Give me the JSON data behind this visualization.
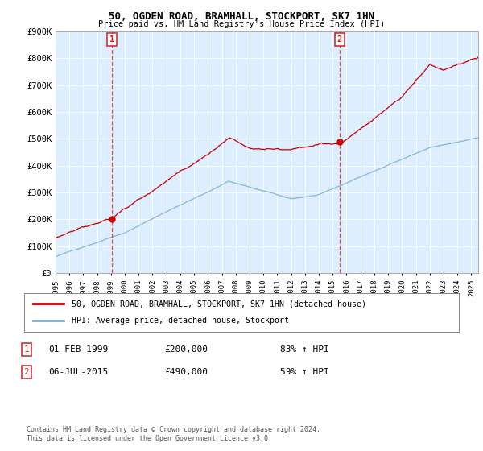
{
  "title": "50, OGDEN ROAD, BRAMHALL, STOCKPORT, SK7 1HN",
  "subtitle": "Price paid vs. HM Land Registry's House Price Index (HPI)",
  "sale1_date": "01-FEB-1999",
  "sale1_price": 200000,
  "sale1_label": "83% ↑ HPI",
  "sale2_date": "06-JUL-2015",
  "sale2_price": 490000,
  "sale2_label": "59% ↑ HPI",
  "legend_line1": "50, OGDEN ROAD, BRAMHALL, STOCKPORT, SK7 1HN (detached house)",
  "legend_line2": "HPI: Average price, detached house, Stockport",
  "footer": "Contains HM Land Registry data © Crown copyright and database right 2024.\nThis data is licensed under the Open Government Licence v3.0.",
  "red_color": "#cc0000",
  "blue_color": "#7ab0d4",
  "bg_fill_color": "#ddeeff",
  "vline_color": "#cc3333",
  "marker_box_color": "#cc2222",
  "ylim": [
    0,
    900000
  ],
  "xlim_start": 1995.0,
  "xlim_end": 2025.5,
  "yticks": [
    0,
    100000,
    200000,
    300000,
    400000,
    500000,
    600000,
    700000,
    800000,
    900000
  ],
  "ytick_labels": [
    "£0",
    "£100K",
    "£200K",
    "£300K",
    "£400K",
    "£500K",
    "£600K",
    "£700K",
    "£800K",
    "£900K"
  ]
}
